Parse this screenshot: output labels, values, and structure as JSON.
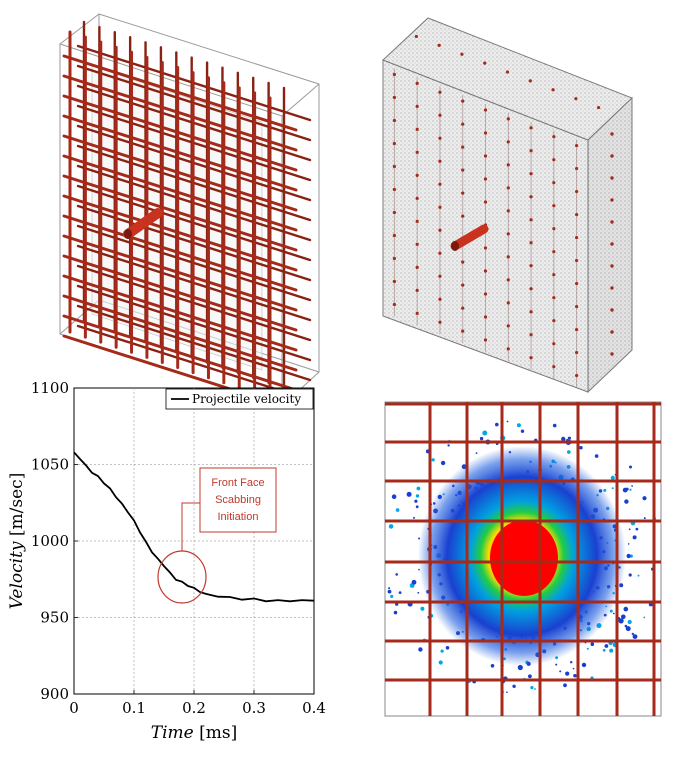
{
  "chart_data": {
    "type": "line",
    "xlabel_italic": "Time",
    "xlabel_unit": "[ms]",
    "ylabel_italic": "Velocity",
    "ylabel_unit": "[m/sec]",
    "xlim": [
      0,
      0.4
    ],
    "ylim": [
      900,
      1100
    ],
    "xticks": [
      "0",
      "0.1",
      "0.2",
      "0.3",
      "0.4"
    ],
    "yticks": [
      "900",
      "950",
      "1000",
      "1050",
      "1100"
    ],
    "grid": true,
    "legend_position": "top-right",
    "series": [
      {
        "name": "Projectile velocity",
        "color": "#000000",
        "x": [
          0,
          0.01,
          0.02,
          0.03,
          0.04,
          0.05,
          0.06,
          0.07,
          0.08,
          0.09,
          0.1,
          0.11,
          0.12,
          0.13,
          0.14,
          0.15,
          0.16,
          0.17,
          0.18,
          0.19,
          0.2,
          0.21,
          0.22,
          0.24,
          0.26,
          0.28,
          0.3,
          0.32,
          0.34,
          0.36,
          0.38,
          0.4
        ],
        "y": [
          1058,
          1054,
          1049,
          1045,
          1042,
          1038,
          1034,
          1029,
          1024,
          1019,
          1013,
          1006,
          999,
          993,
          988,
          984,
          979,
          975,
          973,
          971,
          969,
          967,
          965,
          964,
          963,
          962,
          962,
          961,
          961,
          961,
          961,
          961
        ]
      }
    ],
    "annotation": {
      "lines": [
        "Front Face",
        "Scabbing",
        "Initiation"
      ],
      "color": "#c0392b",
      "target_x": 0.18,
      "target_y": 972
    }
  },
  "colors": {
    "rebar": "#a52a1a",
    "projectile": "#c8321e",
    "box_edge": "#9a9a9a",
    "grid": "#b0b0b0"
  },
  "panels": {
    "top_left": "rebar-cage-icon",
    "top_right": "particle-slab-icon",
    "bottom_right": "damage-contour-icon"
  }
}
